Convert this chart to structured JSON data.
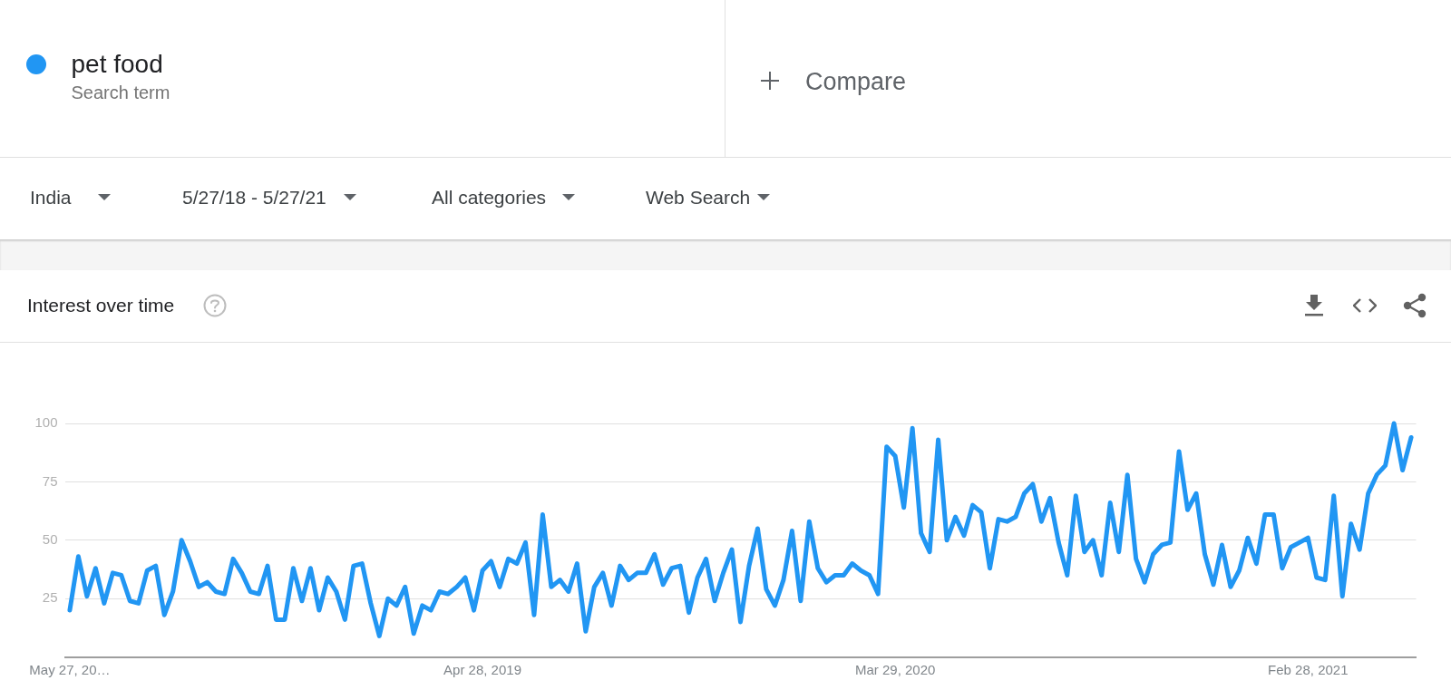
{
  "chart_data": {
    "type": "line",
    "title": "Interest over time",
    "annotations": [
      "Search term",
      "Compare",
      "India",
      "5/27/18 - 5/27/21",
      "All categories",
      "Web Search"
    ],
    "legend": "top left",
    "grid": "y",
    "marker": "none",
    "line_style": "solid",
    "xlim": [
      "2018-05-23",
      "2021-05-27"
    ],
    "xticks": [
      {
        "value": "2018-05-27",
        "label": "May 27, 20…"
      },
      {
        "value": "2019-04-28",
        "label": "Apr 28, 2019"
      },
      {
        "value": "2020-03-29",
        "label": "Mar 29, 2020"
      },
      {
        "value": "2021-02-28",
        "label": "Feb 28, 2021"
      }
    ],
    "ylim": [
      0,
      100
    ],
    "yticks": [
      25,
      50,
      75,
      100
    ],
    "x": [
      "2018-05-27",
      "2018-06-03",
      "2018-06-10",
      "2018-06-17",
      "2018-06-24",
      "2018-07-01",
      "2018-07-08",
      "2018-07-15",
      "2018-07-22",
      "2018-07-29",
      "2018-08-05",
      "2018-08-12",
      "2018-08-19",
      "2018-08-26",
      "2018-09-02",
      "2018-09-09",
      "2018-09-16",
      "2018-09-23",
      "2018-09-30",
      "2018-10-07",
      "2018-10-14",
      "2018-10-21",
      "2018-10-28",
      "2018-11-04",
      "2018-11-11",
      "2018-11-18",
      "2018-11-25",
      "2018-12-02",
      "2018-12-09",
      "2018-12-16",
      "2018-12-23",
      "2018-12-30",
      "2019-01-06",
      "2019-01-13",
      "2019-01-20",
      "2019-01-27",
      "2019-02-03",
      "2019-02-10",
      "2019-02-17",
      "2019-02-24",
      "2019-03-03",
      "2019-03-10",
      "2019-03-17",
      "2019-03-24",
      "2019-03-31",
      "2019-04-07",
      "2019-04-14",
      "2019-04-21",
      "2019-04-28",
      "2019-05-05",
      "2019-05-12",
      "2019-05-19",
      "2019-05-26",
      "2019-06-02",
      "2019-06-09",
      "2019-06-16",
      "2019-06-23",
      "2019-06-30",
      "2019-07-07",
      "2019-07-14",
      "2019-07-21",
      "2019-07-28",
      "2019-08-04",
      "2019-08-11",
      "2019-08-18",
      "2019-08-25",
      "2019-09-01",
      "2019-09-08",
      "2019-09-15",
      "2019-09-22",
      "2019-09-29",
      "2019-10-06",
      "2019-10-13",
      "2019-10-20",
      "2019-10-27",
      "2019-11-03",
      "2019-11-10",
      "2019-11-17",
      "2019-11-24",
      "2019-12-01",
      "2019-12-08",
      "2019-12-15",
      "2019-12-22",
      "2019-12-29",
      "2020-01-05",
      "2020-01-12",
      "2020-01-19",
      "2020-01-26",
      "2020-02-02",
      "2020-02-09",
      "2020-02-16",
      "2020-02-23",
      "2020-03-01",
      "2020-03-08",
      "2020-03-15",
      "2020-03-22",
      "2020-03-29",
      "2020-04-05",
      "2020-04-12",
      "2020-04-19",
      "2020-04-26",
      "2020-05-03",
      "2020-05-10",
      "2020-05-17",
      "2020-05-24",
      "2020-05-31",
      "2020-06-07",
      "2020-06-14",
      "2020-06-21",
      "2020-06-28",
      "2020-07-05",
      "2020-07-12",
      "2020-07-19",
      "2020-07-26",
      "2020-08-02",
      "2020-08-09",
      "2020-08-16",
      "2020-08-23",
      "2020-08-30",
      "2020-09-06",
      "2020-09-13",
      "2020-09-20",
      "2020-09-27",
      "2020-10-04",
      "2020-10-11",
      "2020-10-18",
      "2020-10-25",
      "2020-11-01",
      "2020-11-08",
      "2020-11-15",
      "2020-11-22",
      "2020-11-29",
      "2020-12-06",
      "2020-12-13",
      "2020-12-20",
      "2020-12-27",
      "2021-01-03",
      "2021-01-10",
      "2021-01-17",
      "2021-01-24",
      "2021-01-31",
      "2021-02-07",
      "2021-02-14",
      "2021-02-21",
      "2021-02-28",
      "2021-03-07",
      "2021-03-14",
      "2021-03-21",
      "2021-03-28",
      "2021-04-04",
      "2021-04-11",
      "2021-04-18",
      "2021-04-25",
      "2021-05-02",
      "2021-05-09",
      "2021-05-16",
      "2021-05-23"
    ],
    "series": [
      {
        "name": "pet food",
        "color": "#2196f3",
        "values": [
          20,
          43,
          26,
          38,
          23,
          36,
          35,
          24,
          23,
          37,
          39,
          18,
          28,
          50,
          41,
          30,
          32,
          28,
          27,
          42,
          36,
          28,
          27,
          39,
          16,
          16,
          38,
          24,
          38,
          20,
          34,
          28,
          16,
          39,
          40,
          23,
          9,
          25,
          22,
          30,
          10,
          22,
          20,
          28,
          27,
          30,
          34,
          20,
          37,
          41,
          30,
          42,
          40,
          49,
          18,
          61,
          30,
          33,
          28,
          40,
          11,
          30,
          36,
          22,
          39,
          33,
          36,
          36,
          44,
          31,
          38,
          39,
          19,
          34,
          42,
          24,
          36,
          46,
          15,
          39,
          55,
          29,
          22,
          33,
          54,
          24,
          58,
          38,
          32,
          35,
          35,
          40,
          37,
          35,
          27,
          90,
          86,
          64,
          98,
          53,
          45,
          93,
          50,
          60,
          52,
          65,
          62,
          38,
          59,
          58,
          60,
          70,
          74,
          58,
          68,
          49,
          35,
          69,
          45,
          50,
          35,
          66,
          45,
          78,
          42,
          32,
          44,
          48,
          49,
          88,
          63,
          70,
          44,
          31,
          48,
          30,
          37,
          51,
          40,
          61,
          61,
          38,
          47,
          49,
          51,
          34,
          33,
          69,
          26,
          57,
          46,
          70,
          78,
          82,
          100,
          80,
          94
        ]
      }
    ]
  }
}
